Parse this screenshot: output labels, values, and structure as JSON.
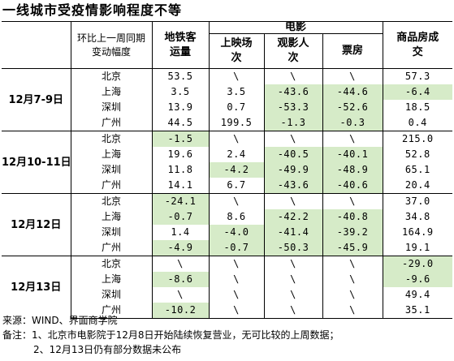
{
  "title": "一线城市受疫情影响程度不等",
  "header": {
    "change_label": "环比上一周同期变动幅度",
    "metro": "地铁客运量",
    "film_group": "电影",
    "screenings": "上映场次",
    "audience": "观影人次",
    "box_office": "票房",
    "housing": "商品房成交"
  },
  "highlight_color": "#d6ebc8",
  "groups": [
    {
      "period": "12月7-9日",
      "rows": [
        {
          "city": "北京",
          "metro": "53.5",
          "screenings": "\\",
          "audience": "\\",
          "box_office": "\\",
          "housing": "57.3",
          "hl": []
        },
        {
          "city": "上海",
          "metro": "3.5",
          "screenings": "3.5",
          "audience": "-43.6",
          "box_office": "-44.6",
          "housing": "-6.4",
          "hl": [
            "audience",
            "box_office",
            "housing"
          ]
        },
        {
          "city": "深圳",
          "metro": "13.9",
          "screenings": "0.7",
          "audience": "-53.3",
          "box_office": "-52.6",
          "housing": "18.5",
          "hl": [
            "audience",
            "box_office"
          ]
        },
        {
          "city": "广州",
          "metro": "44.5",
          "screenings": "199.5",
          "audience": "-1.3",
          "box_office": "-0.3",
          "housing": "0.4",
          "hl": [
            "audience",
            "box_office"
          ]
        }
      ]
    },
    {
      "period": "12月10-11日",
      "rows": [
        {
          "city": "北京",
          "metro": "-1.5",
          "screenings": "\\",
          "audience": "\\",
          "box_office": "\\",
          "housing": "215.0",
          "hl": [
            "metro"
          ]
        },
        {
          "city": "上海",
          "metro": "19.6",
          "screenings": "2.4",
          "audience": "-40.5",
          "box_office": "-40.1",
          "housing": "52.8",
          "hl": [
            "audience",
            "box_office"
          ]
        },
        {
          "city": "深圳",
          "metro": "11.8",
          "screenings": "-4.2",
          "audience": "-49.9",
          "box_office": "-48.9",
          "housing": "65.1",
          "hl": [
            "screenings",
            "audience",
            "box_office"
          ]
        },
        {
          "city": "广州",
          "metro": "14.1",
          "screenings": "6.7",
          "audience": "-43.6",
          "box_office": "-40.6",
          "housing": "20.4",
          "hl": [
            "audience",
            "box_office"
          ]
        }
      ]
    },
    {
      "period": "12月12日",
      "rows": [
        {
          "city": "北京",
          "metro": "-24.1",
          "screenings": "\\",
          "audience": "\\",
          "box_office": "\\",
          "housing": "37.0",
          "hl": [
            "metro"
          ]
        },
        {
          "city": "上海",
          "metro": "-0.7",
          "screenings": "8.6",
          "audience": "-42.2",
          "box_office": "-40.8",
          "housing": "34.8",
          "hl": [
            "metro",
            "audience",
            "box_office"
          ]
        },
        {
          "city": "深圳",
          "metro": "1.4",
          "screenings": "-4.0",
          "audience": "-41.4",
          "box_office": "-39.2",
          "housing": "164.9",
          "hl": [
            "screenings",
            "audience",
            "box_office"
          ]
        },
        {
          "city": "广州",
          "metro": "-4.9",
          "screenings": "-0.7",
          "audience": "-50.3",
          "box_office": "-45.9",
          "housing": "19.1",
          "hl": [
            "metro",
            "screenings",
            "audience",
            "box_office"
          ]
        }
      ]
    },
    {
      "period": "12月13日",
      "rows": [
        {
          "city": "北京",
          "metro": "\\",
          "screenings": "\\",
          "audience": "\\",
          "box_office": "\\",
          "housing": "-29.0",
          "hl": [
            "housing"
          ]
        },
        {
          "city": "上海",
          "metro": "-8.6",
          "screenings": "\\",
          "audience": "\\",
          "box_office": "\\",
          "housing": "-9.6",
          "hl": [
            "metro",
            "housing"
          ]
        },
        {
          "city": "深圳",
          "metro": "\\",
          "screenings": "\\",
          "audience": "\\",
          "box_office": "\\",
          "housing": "49.4",
          "hl": []
        },
        {
          "city": "广州",
          "metro": "-10.2",
          "screenings": "\\",
          "audience": "\\",
          "box_office": "\\",
          "housing": "35.1",
          "hl": [
            "metro"
          ]
        }
      ]
    }
  ],
  "notes": {
    "source": "来源：WIND、界面商学院",
    "note1": "备注：1、北京市电影院于12月8日开始陆续恢复营业，无可比较的上周数据；",
    "note2": "2、12月13日仍有部分数据未公布"
  }
}
